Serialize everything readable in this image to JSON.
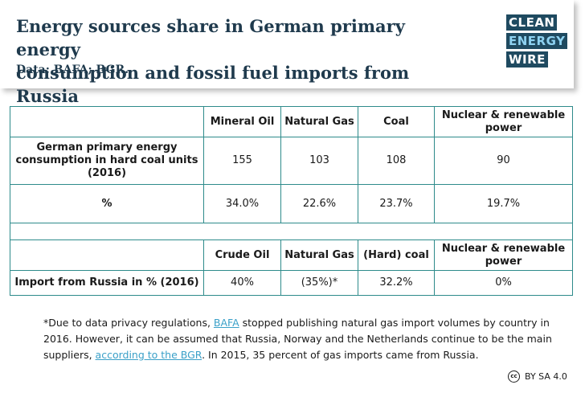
{
  "header": {
    "title_line1": "Energy sources share in German primary energy",
    "title_line2": "consumption and fossil fuel imports from Russia",
    "source": "Data: BAFA; BGR.",
    "logo": [
      "CLEAN",
      "ENERGY",
      "WIRE"
    ]
  },
  "table1": {
    "headers": [
      "Mineral Oil",
      "Natural Gas",
      "Coal",
      "Nuclear & renewable power"
    ],
    "rows": [
      {
        "label": "German primary energy consumption in hard coal units (2016)",
        "values": [
          "155",
          "103",
          "108",
          "90"
        ]
      },
      {
        "label": "%",
        "values": [
          "34.0%",
          "22.6%",
          "23.7%",
          "19.7%"
        ]
      }
    ]
  },
  "table2": {
    "headers": [
      "Crude Oil",
      "Natural Gas",
      "(Hard) coal",
      "Nuclear & renewable power"
    ],
    "rows": [
      {
        "label": "Import from Russia in % (2016)",
        "values": [
          "40%",
          "(35%)*",
          "32.2%",
          "0%"
        ]
      }
    ]
  },
  "footnote": {
    "part1": "*Due to data privacy regulations, ",
    "link1": "BAFA",
    "part2": " stopped publishing natural gas import volumes by country in 2016. However, it can be assumed that Russia, Norway and the Netherlands continue to be the main suppliers, ",
    "link2": "according to the BGR",
    "part3": ". In 2015, 35 percent of gas imports came from Russia."
  },
  "license": {
    "icon_text": "cc",
    "text": "BY SA 4.0"
  }
}
